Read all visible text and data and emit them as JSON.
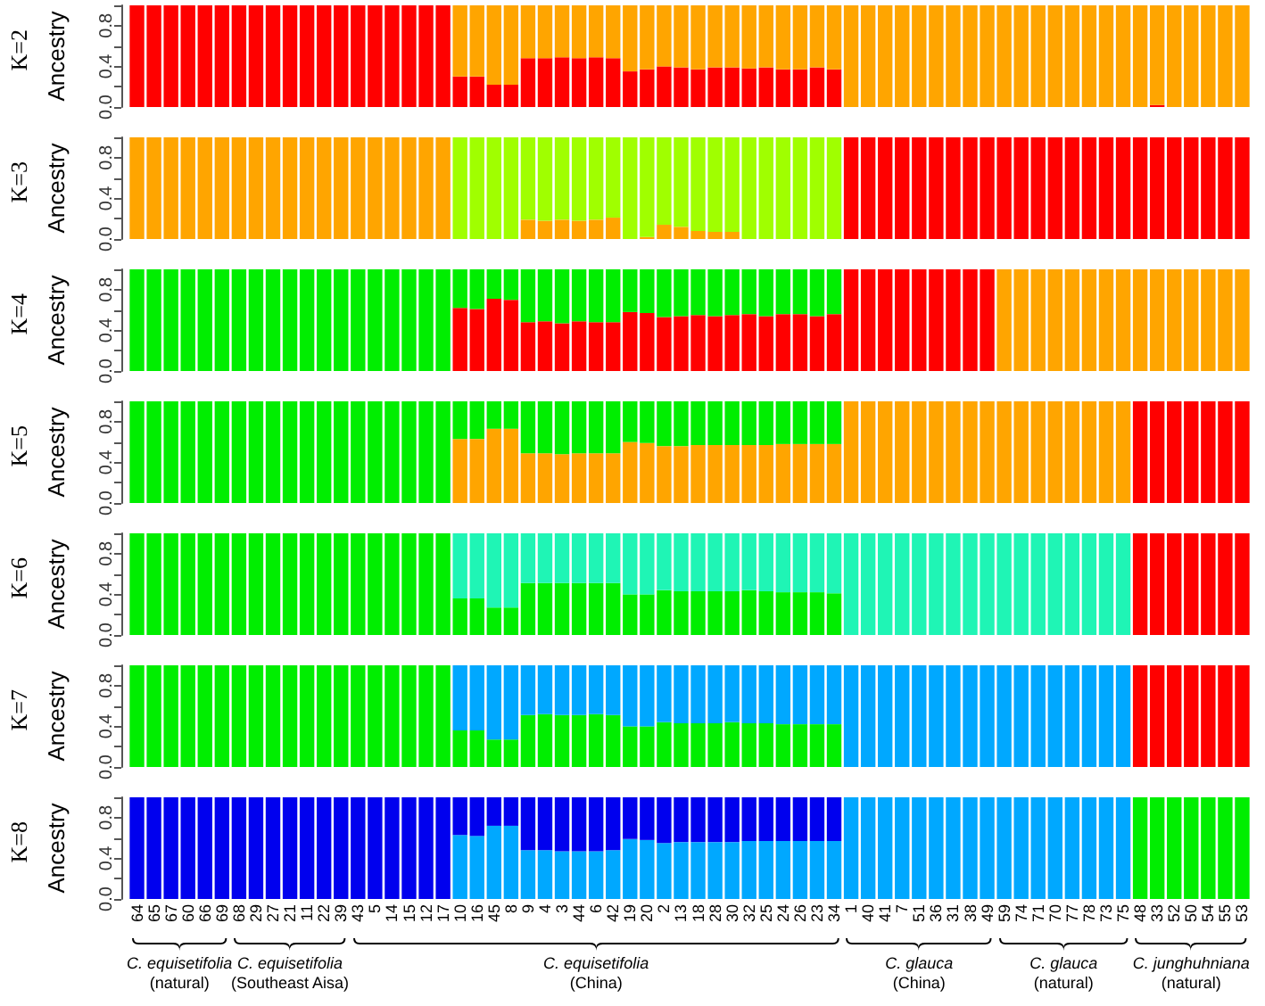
{
  "chart_data": [
    {
      "type": "bar",
      "stacked": true,
      "title": "K=2",
      "ylabel": "Ancestry",
      "tick_labels": "y",
      "ylim": [
        0,
        1
      ],
      "yticks": [
        {
          "value": 0,
          "label": "0.0"
        },
        {
          "value": 0.2,
          "label": null
        },
        {
          "value": 0.4,
          "label": "0.4"
        },
        {
          "value": 0.6,
          "label": null
        },
        {
          "value": 0.8,
          "label": "0.8"
        },
        {
          "value": 1,
          "label": null
        }
      ],
      "categories": [
        "64",
        "65",
        "67",
        "60",
        "66",
        "69",
        "68",
        "29",
        "27",
        "21",
        "11",
        "22",
        "39",
        "43",
        "5",
        "14",
        "15",
        "12",
        "17",
        "10",
        "16",
        "45",
        "8",
        "9",
        "4",
        "3",
        "44",
        "6",
        "42",
        "19",
        "20",
        "2",
        "13",
        "18",
        "28",
        "30",
        "32",
        "25",
        "24",
        "26",
        "23",
        "34",
        "1",
        "40",
        "41",
        "7",
        "51",
        "36",
        "31",
        "38",
        "49",
        "59",
        "74",
        "71",
        "70",
        "77",
        "78",
        "73",
        "75",
        "48",
        "33",
        "52",
        "50",
        "54",
        "55",
        "53"
      ],
      "series": [
        {
          "color": "#ff0000",
          "values": [
            1,
            1,
            1,
            1,
            1,
            1,
            1,
            1,
            1,
            1,
            1,
            1,
            1,
            1,
            1,
            1,
            1,
            1,
            1,
            0.3,
            0.3,
            0.22,
            0.22,
            0.48,
            0.48,
            0.49,
            0.48,
            0.49,
            0.48,
            0.35,
            0.37,
            0.4,
            0.39,
            0.37,
            0.39,
            0.39,
            0.38,
            0.39,
            0.37,
            0.37,
            0.39,
            0.37,
            0,
            0,
            0,
            0,
            0,
            0,
            0,
            0,
            0,
            0,
            0,
            0,
            0,
            0,
            0,
            0,
            0,
            0,
            0.02,
            0,
            0,
            0,
            0,
            0
          ]
        },
        {
          "color": "#ffa500",
          "values": [
            0,
            0,
            0,
            0,
            0,
            0,
            0,
            0,
            0,
            0,
            0,
            0,
            0,
            0,
            0,
            0,
            0,
            0,
            0,
            0.7,
            0.7,
            0.78,
            0.78,
            0.52,
            0.52,
            0.51,
            0.52,
            0.51,
            0.52,
            0.65,
            0.63,
            0.6,
            0.61,
            0.63,
            0.61,
            0.61,
            0.62,
            0.61,
            0.63,
            0.63,
            0.61,
            0.63,
            1,
            1,
            1,
            1,
            1,
            1,
            1,
            1,
            1,
            1,
            1,
            1,
            1,
            1,
            1,
            1,
            1,
            1,
            0.98,
            1,
            1,
            1,
            1,
            1
          ]
        }
      ]
    },
    {
      "type": "bar",
      "stacked": true,
      "title": "K=3",
      "ylabel": "Ancestry",
      "tick_labels": "y",
      "ylim": [
        0,
        1
      ],
      "yticks": [
        {
          "value": 0,
          "label": "0.0"
        },
        {
          "value": 0.2,
          "label": null
        },
        {
          "value": 0.4,
          "label": "0.4"
        },
        {
          "value": 0.6,
          "label": null
        },
        {
          "value": 0.8,
          "label": "0.8"
        },
        {
          "value": 1,
          "label": null
        }
      ],
      "categories": [
        "64",
        "65",
        "67",
        "60",
        "66",
        "69",
        "68",
        "29",
        "27",
        "21",
        "11",
        "22",
        "39",
        "43",
        "5",
        "14",
        "15",
        "12",
        "17",
        "10",
        "16",
        "45",
        "8",
        "9",
        "4",
        "3",
        "44",
        "6",
        "42",
        "19",
        "20",
        "2",
        "13",
        "18",
        "28",
        "30",
        "32",
        "25",
        "24",
        "26",
        "23",
        "34",
        "1",
        "40",
        "41",
        "7",
        "51",
        "36",
        "31",
        "38",
        "49",
        "59",
        "74",
        "71",
        "70",
        "77",
        "78",
        "73",
        "75",
        "48",
        "33",
        "52",
        "50",
        "54",
        "55",
        "53"
      ],
      "series": [
        {
          "color": "#ffa500",
          "values": [
            1,
            1,
            1,
            1,
            1,
            1,
            1,
            1,
            1,
            1,
            1,
            1,
            1,
            1,
            1,
            1,
            1,
            1,
            1,
            0,
            0,
            0,
            0,
            0.19,
            0.18,
            0.19,
            0.18,
            0.19,
            0.21,
            0,
            0.02,
            0.14,
            0.12,
            0.08,
            0.07,
            0.07,
            0,
            0,
            0,
            0,
            0,
            0,
            0,
            0,
            0,
            0,
            0,
            0,
            0,
            0,
            0,
            0,
            0,
            0,
            0,
            0,
            0,
            0,
            0,
            0,
            0,
            0,
            0,
            0,
            0,
            0
          ]
        },
        {
          "color": "#a0ff00",
          "values": [
            0,
            0,
            0,
            0,
            0,
            0,
            0,
            0,
            0,
            0,
            0,
            0,
            0,
            0,
            0,
            0,
            0,
            0,
            0,
            1,
            1,
            1,
            1,
            0.81,
            0.82,
            0.81,
            0.82,
            0.81,
            0.79,
            1,
            0.98,
            0.86,
            0.88,
            0.92,
            0.93,
            0.93,
            1,
            1,
            1,
            1,
            1,
            1,
            0,
            0,
            0,
            0,
            0,
            0,
            0,
            0,
            0,
            0,
            0,
            0,
            0,
            0,
            0,
            0,
            0,
            0,
            0,
            0,
            0,
            0,
            0,
            0
          ]
        },
        {
          "color": "#ff0000",
          "values": [
            0,
            0,
            0,
            0,
            0,
            0,
            0,
            0,
            0,
            0,
            0,
            0,
            0,
            0,
            0,
            0,
            0,
            0,
            0,
            0,
            0,
            0,
            0,
            0,
            0,
            0,
            0,
            0,
            0,
            0,
            0,
            0,
            0,
            0,
            0,
            0,
            0,
            0,
            0,
            0,
            0,
            0,
            1,
            1,
            1,
            1,
            1,
            1,
            1,
            1,
            1,
            1,
            1,
            1,
            1,
            1,
            1,
            1,
            1,
            1,
            1,
            1,
            1,
            1,
            1,
            1
          ]
        }
      ]
    },
    {
      "type": "bar",
      "stacked": true,
      "title": "K=4",
      "ylabel": "Ancestry",
      "tick_labels": "y",
      "ylim": [
        0,
        1
      ],
      "yticks": [
        {
          "value": 0,
          "label": "0.0"
        },
        {
          "value": 0.2,
          "label": null
        },
        {
          "value": 0.4,
          "label": "0.4"
        },
        {
          "value": 0.6,
          "label": null
        },
        {
          "value": 0.8,
          "label": "0.8"
        },
        {
          "value": 1,
          "label": null
        }
      ],
      "categories": [
        "64",
        "65",
        "67",
        "60",
        "66",
        "69",
        "68",
        "29",
        "27",
        "21",
        "11",
        "22",
        "39",
        "43",
        "5",
        "14",
        "15",
        "12",
        "17",
        "10",
        "16",
        "45",
        "8",
        "9",
        "4",
        "3",
        "44",
        "6",
        "42",
        "19",
        "20",
        "2",
        "13",
        "18",
        "28",
        "30",
        "32",
        "25",
        "24",
        "26",
        "23",
        "34",
        "1",
        "40",
        "41",
        "7",
        "51",
        "36",
        "31",
        "38",
        "49",
        "59",
        "74",
        "71",
        "70",
        "77",
        "78",
        "73",
        "75",
        "48",
        "33",
        "52",
        "50",
        "54",
        "55",
        "53"
      ],
      "series": [
        {
          "color": "#ff0000",
          "values": [
            0,
            0,
            0,
            0,
            0,
            0,
            0,
            0,
            0,
            0,
            0,
            0,
            0,
            0,
            0,
            0,
            0,
            0,
            0,
            0.62,
            0.61,
            0.71,
            0.7,
            0.48,
            0.49,
            0.47,
            0.49,
            0.48,
            0.48,
            0.58,
            0.57,
            0.53,
            0.54,
            0.55,
            0.54,
            0.55,
            0.56,
            0.54,
            0.56,
            0.56,
            0.54,
            0.56,
            1,
            1,
            1,
            1,
            1,
            1,
            1,
            1,
            1,
            0,
            0,
            0,
            0,
            0,
            0,
            0,
            0,
            0,
            0,
            0,
            0,
            0,
            0,
            0
          ]
        },
        {
          "color": "#00ee00",
          "values": [
            1,
            1,
            1,
            1,
            1,
            1,
            1,
            1,
            1,
            1,
            1,
            1,
            1,
            1,
            1,
            1,
            1,
            1,
            1,
            0.38,
            0.39,
            0.29,
            0.3,
            0.52,
            0.51,
            0.53,
            0.51,
            0.52,
            0.52,
            0.42,
            0.43,
            0.47,
            0.46,
            0.45,
            0.46,
            0.45,
            0.44,
            0.46,
            0.44,
            0.44,
            0.46,
            0.44,
            0,
            0,
            0,
            0,
            0,
            0,
            0,
            0,
            0,
            0,
            0,
            0,
            0,
            0,
            0,
            0,
            0,
            0,
            0,
            0,
            0,
            0,
            0,
            0
          ]
        },
        {
          "color": "#ffa500",
          "values": [
            0,
            0,
            0,
            0,
            0,
            0,
            0,
            0,
            0,
            0,
            0,
            0,
            0,
            0,
            0,
            0,
            0,
            0,
            0,
            0,
            0,
            0,
            0,
            0,
            0,
            0,
            0,
            0,
            0,
            0,
            0,
            0,
            0,
            0,
            0,
            0,
            0,
            0,
            0,
            0,
            0,
            0,
            0,
            0,
            0,
            0,
            0,
            0,
            0,
            0,
            0,
            1,
            1,
            1,
            1,
            1,
            1,
            1,
            1,
            1,
            1,
            1,
            1,
            1,
            1,
            1
          ]
        }
      ]
    },
    {
      "type": "bar",
      "stacked": true,
      "title": "K=5",
      "ylabel": "Ancestry",
      "tick_labels": "y",
      "ylim": [
        0,
        1
      ],
      "yticks": [
        {
          "value": 0,
          "label": "0.0"
        },
        {
          "value": 0.2,
          "label": null
        },
        {
          "value": 0.4,
          "label": "0.4"
        },
        {
          "value": 0.6,
          "label": null
        },
        {
          "value": 0.8,
          "label": "0.8"
        },
        {
          "value": 1,
          "label": null
        }
      ],
      "categories": [
        "64",
        "65",
        "67",
        "60",
        "66",
        "69",
        "68",
        "29",
        "27",
        "21",
        "11",
        "22",
        "39",
        "43",
        "5",
        "14",
        "15",
        "12",
        "17",
        "10",
        "16",
        "45",
        "8",
        "9",
        "4",
        "3",
        "44",
        "6",
        "42",
        "19",
        "20",
        "2",
        "13",
        "18",
        "28",
        "30",
        "32",
        "25",
        "24",
        "26",
        "23",
        "34",
        "1",
        "40",
        "41",
        "7",
        "51",
        "36",
        "31",
        "38",
        "49",
        "59",
        "74",
        "71",
        "70",
        "77",
        "78",
        "73",
        "75",
        "48",
        "33",
        "52",
        "50",
        "54",
        "55",
        "53"
      ],
      "series": [
        {
          "color": "#ffa500",
          "values": [
            0,
            0,
            0,
            0,
            0,
            0,
            0,
            0,
            0,
            0,
            0,
            0,
            0,
            0,
            0,
            0,
            0,
            0,
            0,
            0.63,
            0.63,
            0.73,
            0.73,
            0.49,
            0.49,
            0.48,
            0.49,
            0.49,
            0.49,
            0.6,
            0.59,
            0.56,
            0.56,
            0.57,
            0.57,
            0.57,
            0.57,
            0.57,
            0.58,
            0.58,
            0.58,
            0.58,
            1,
            1,
            1,
            1,
            1,
            1,
            1,
            1,
            1,
            1,
            1,
            1,
            1,
            1,
            1,
            1,
            1,
            0,
            0,
            0,
            0,
            0,
            0,
            0
          ]
        },
        {
          "color": "#00ee00",
          "values": [
            1,
            1,
            1,
            1,
            1,
            1,
            1,
            1,
            1,
            1,
            1,
            1,
            1,
            1,
            1,
            1,
            1,
            1,
            1,
            0.37,
            0.37,
            0.27,
            0.27,
            0.51,
            0.51,
            0.52,
            0.51,
            0.51,
            0.51,
            0.4,
            0.41,
            0.44,
            0.44,
            0.43,
            0.43,
            0.43,
            0.43,
            0.43,
            0.42,
            0.42,
            0.42,
            0.42,
            0,
            0,
            0,
            0,
            0,
            0,
            0,
            0,
            0,
            0,
            0,
            0,
            0,
            0,
            0,
            0,
            0,
            0,
            0,
            0,
            0,
            0,
            0,
            0
          ]
        },
        {
          "color": "#ff0000",
          "values": [
            0,
            0,
            0,
            0,
            0,
            0,
            0,
            0,
            0,
            0,
            0,
            0,
            0,
            0,
            0,
            0,
            0,
            0,
            0,
            0,
            0,
            0,
            0,
            0,
            0,
            0,
            0,
            0,
            0,
            0,
            0,
            0,
            0,
            0,
            0,
            0,
            0,
            0,
            0,
            0,
            0,
            0,
            0,
            0,
            0,
            0,
            0,
            0,
            0,
            0,
            0,
            0,
            0,
            0,
            0,
            0,
            0,
            0,
            0,
            1,
            1,
            1,
            1,
            1,
            1,
            1
          ]
        }
      ]
    },
    {
      "type": "bar",
      "stacked": true,
      "title": "K=6",
      "ylabel": "Ancestry",
      "tick_labels": "y",
      "ylim": [
        0,
        1
      ],
      "yticks": [
        {
          "value": 0,
          "label": "0.0"
        },
        {
          "value": 0.2,
          "label": null
        },
        {
          "value": 0.4,
          "label": "0.4"
        },
        {
          "value": 0.6,
          "label": null
        },
        {
          "value": 0.8,
          "label": "0.8"
        },
        {
          "value": 1,
          "label": null
        }
      ],
      "categories": [
        "64",
        "65",
        "67",
        "60",
        "66",
        "69",
        "68",
        "29",
        "27",
        "21",
        "11",
        "22",
        "39",
        "43",
        "5",
        "14",
        "15",
        "12",
        "17",
        "10",
        "16",
        "45",
        "8",
        "9",
        "4",
        "3",
        "44",
        "6",
        "42",
        "19",
        "20",
        "2",
        "13",
        "18",
        "28",
        "30",
        "32",
        "25",
        "24",
        "26",
        "23",
        "34",
        "1",
        "40",
        "41",
        "7",
        "51",
        "36",
        "31",
        "38",
        "49",
        "59",
        "74",
        "71",
        "70",
        "77",
        "78",
        "73",
        "75",
        "48",
        "33",
        "52",
        "50",
        "54",
        "55",
        "53"
      ],
      "series": [
        {
          "color": "#00ee00",
          "values": [
            1,
            1,
            1,
            1,
            1,
            1,
            1,
            1,
            1,
            1,
            1,
            1,
            1,
            1,
            1,
            1,
            1,
            1,
            1,
            0.36,
            0.36,
            0.27,
            0.27,
            0.51,
            0.51,
            0.51,
            0.51,
            0.51,
            0.51,
            0.4,
            0.4,
            0.44,
            0.43,
            0.43,
            0.43,
            0.43,
            0.44,
            0.43,
            0.42,
            0.42,
            0.42,
            0.41,
            0,
            0,
            0,
            0,
            0,
            0,
            0,
            0,
            0,
            0,
            0,
            0,
            0,
            0,
            0,
            0,
            0,
            0,
            0,
            0,
            0,
            0,
            0,
            0
          ]
        },
        {
          "color": "#1ff5b5",
          "values": [
            0,
            0,
            0,
            0,
            0,
            0,
            0,
            0,
            0,
            0,
            0,
            0,
            0,
            0,
            0,
            0,
            0,
            0,
            0,
            0.64,
            0.64,
            0.73,
            0.73,
            0.49,
            0.49,
            0.49,
            0.49,
            0.49,
            0.49,
            0.6,
            0.6,
            0.56,
            0.57,
            0.57,
            0.57,
            0.57,
            0.56,
            0.57,
            0.58,
            0.58,
            0.58,
            0.59,
            1,
            1,
            1,
            1,
            1,
            1,
            1,
            1,
            1,
            1,
            1,
            1,
            1,
            1,
            1,
            1,
            1,
            0,
            0,
            0,
            0,
            0,
            0,
            0
          ]
        },
        {
          "color": "#ff0000",
          "values": [
            0,
            0,
            0,
            0,
            0,
            0,
            0,
            0,
            0,
            0,
            0,
            0,
            0,
            0,
            0,
            0,
            0,
            0,
            0,
            0,
            0,
            0,
            0,
            0,
            0,
            0,
            0,
            0,
            0,
            0,
            0,
            0,
            0,
            0,
            0,
            0,
            0,
            0,
            0,
            0,
            0,
            0,
            0,
            0,
            0,
            0,
            0,
            0,
            0,
            0,
            0,
            0,
            0,
            0,
            0,
            0,
            0,
            0,
            0,
            1,
            1,
            1,
            1,
            1,
            1,
            1
          ]
        }
      ]
    },
    {
      "type": "bar",
      "stacked": true,
      "title": "K=7",
      "ylabel": "Ancestry",
      "tick_labels": "y",
      "ylim": [
        0,
        1
      ],
      "yticks": [
        {
          "value": 0,
          "label": "0.0"
        },
        {
          "value": 0.2,
          "label": null
        },
        {
          "value": 0.4,
          "label": "0.4"
        },
        {
          "value": 0.6,
          "label": null
        },
        {
          "value": 0.8,
          "label": "0.8"
        },
        {
          "value": 1,
          "label": null
        }
      ],
      "categories": [
        "64",
        "65",
        "67",
        "60",
        "66",
        "69",
        "68",
        "29",
        "27",
        "21",
        "11",
        "22",
        "39",
        "43",
        "5",
        "14",
        "15",
        "12",
        "17",
        "10",
        "16",
        "45",
        "8",
        "9",
        "4",
        "3",
        "44",
        "6",
        "42",
        "19",
        "20",
        "2",
        "13",
        "18",
        "28",
        "30",
        "32",
        "25",
        "24",
        "26",
        "23",
        "34",
        "1",
        "40",
        "41",
        "7",
        "51",
        "36",
        "31",
        "38",
        "49",
        "59",
        "74",
        "71",
        "70",
        "77",
        "78",
        "73",
        "75",
        "48",
        "33",
        "52",
        "50",
        "54",
        "55",
        "53"
      ],
      "series": [
        {
          "color": "#00ee00",
          "values": [
            1,
            1,
            1,
            1,
            1,
            1,
            1,
            1,
            1,
            1,
            1,
            1,
            1,
            1,
            1,
            1,
            1,
            1,
            1,
            0.36,
            0.36,
            0.27,
            0.27,
            0.51,
            0.52,
            0.51,
            0.51,
            0.52,
            0.51,
            0.4,
            0.4,
            0.44,
            0.43,
            0.43,
            0.43,
            0.44,
            0.43,
            0.43,
            0.42,
            0.42,
            0.42,
            0.42,
            0,
            0,
            0,
            0,
            0,
            0,
            0,
            0,
            0,
            0,
            0,
            0,
            0,
            0,
            0,
            0,
            0,
            0,
            0,
            0,
            0,
            0,
            0,
            0
          ]
        },
        {
          "color": "#00a8ff",
          "values": [
            0,
            0,
            0,
            0,
            0,
            0,
            0,
            0,
            0,
            0,
            0,
            0,
            0,
            0,
            0,
            0,
            0,
            0,
            0,
            0.64,
            0.64,
            0.73,
            0.73,
            0.49,
            0.48,
            0.49,
            0.49,
            0.48,
            0.49,
            0.6,
            0.6,
            0.56,
            0.57,
            0.57,
            0.57,
            0.56,
            0.57,
            0.57,
            0.58,
            0.58,
            0.58,
            0.58,
            1,
            1,
            1,
            1,
            1,
            1,
            1,
            1,
            1,
            1,
            1,
            1,
            1,
            1,
            1,
            1,
            1,
            0,
            0,
            0,
            0,
            0,
            0,
            0
          ]
        },
        {
          "color": "#ff0000",
          "values": [
            0,
            0,
            0,
            0,
            0,
            0,
            0,
            0,
            0,
            0,
            0,
            0,
            0,
            0,
            0,
            0,
            0,
            0,
            0,
            0,
            0,
            0,
            0,
            0,
            0,
            0,
            0,
            0,
            0,
            0,
            0,
            0,
            0,
            0,
            0,
            0,
            0,
            0,
            0,
            0,
            0,
            0,
            0,
            0,
            0,
            0,
            0,
            0,
            0,
            0,
            0,
            0,
            0,
            0,
            0,
            0,
            0,
            0,
            0,
            1,
            1,
            1,
            1,
            1,
            1,
            1
          ]
        }
      ]
    },
    {
      "type": "bar",
      "stacked": true,
      "title": "K=8",
      "ylabel": "Ancestry",
      "ylim": [
        0,
        1
      ],
      "yticks": [
        {
          "value": 0,
          "label": "0.0"
        },
        {
          "value": 0.2,
          "label": null
        },
        {
          "value": 0.4,
          "label": "0.4"
        },
        {
          "value": 0.6,
          "label": null
        },
        {
          "value": 0.8,
          "label": "0.8"
        },
        {
          "value": 1,
          "label": null
        }
      ],
      "categories": [
        "64",
        "65",
        "67",
        "60",
        "66",
        "69",
        "68",
        "29",
        "27",
        "21",
        "11",
        "22",
        "39",
        "43",
        "5",
        "14",
        "15",
        "12",
        "17",
        "10",
        "16",
        "45",
        "8",
        "9",
        "4",
        "3",
        "44",
        "6",
        "42",
        "19",
        "20",
        "2",
        "13",
        "18",
        "28",
        "30",
        "32",
        "25",
        "24",
        "26",
        "23",
        "34",
        "1",
        "40",
        "41",
        "7",
        "51",
        "36",
        "31",
        "38",
        "49",
        "59",
        "74",
        "71",
        "70",
        "77",
        "78",
        "73",
        "75",
        "48",
        "33",
        "52",
        "50",
        "54",
        "55",
        "53"
      ],
      "series": [
        {
          "color": "#00a8ff",
          "values": [
            0,
            0,
            0,
            0,
            0,
            0,
            0,
            0,
            0,
            0,
            0,
            0,
            0,
            0,
            0,
            0,
            0,
            0,
            0,
            0.63,
            0.62,
            0.72,
            0.72,
            0.48,
            0.48,
            0.47,
            0.47,
            0.47,
            0.48,
            0.59,
            0.58,
            0.55,
            0.56,
            0.56,
            0.56,
            0.56,
            0.57,
            0.57,
            0.57,
            0.57,
            0.57,
            0.57,
            1,
            1,
            1,
            1,
            1,
            1,
            1,
            1,
            1,
            1,
            1,
            1,
            1,
            1,
            1,
            1,
            1,
            0,
            0,
            0,
            0,
            0,
            0,
            0
          ]
        },
        {
          "color": "#0000ee",
          "values": [
            1,
            1,
            1,
            1,
            1,
            1,
            1,
            1,
            1,
            1,
            1,
            1,
            1,
            1,
            1,
            1,
            1,
            1,
            1,
            0.37,
            0.38,
            0.28,
            0.28,
            0.52,
            0.52,
            0.53,
            0.53,
            0.53,
            0.52,
            0.41,
            0.42,
            0.45,
            0.44,
            0.44,
            0.44,
            0.44,
            0.43,
            0.43,
            0.43,
            0.43,
            0.43,
            0.43,
            0,
            0,
            0,
            0,
            0,
            0,
            0,
            0,
            0,
            0,
            0,
            0,
            0,
            0,
            0,
            0,
            0,
            0,
            0,
            0,
            0,
            0,
            0,
            0
          ]
        },
        {
          "color": "#00ee00",
          "values": [
            0,
            0,
            0,
            0,
            0,
            0,
            0,
            0,
            0,
            0,
            0,
            0,
            0,
            0,
            0,
            0,
            0,
            0,
            0,
            0,
            0,
            0,
            0,
            0,
            0,
            0,
            0,
            0,
            0,
            0,
            0,
            0,
            0,
            0,
            0,
            0,
            0,
            0,
            0,
            0,
            0,
            0,
            0,
            0,
            0,
            0,
            0,
            0,
            0,
            0,
            0,
            0,
            0,
            0,
            0,
            0,
            0,
            0,
            0,
            1,
            1,
            1,
            1,
            1,
            1,
            1
          ]
        }
      ],
      "annotations": [
        "C. equisetifolia\n(natural)",
        "C. equisetifolia\n(Southeast Aisa)",
        "C. equisetifolia\n(China)",
        "C. glauca\n(China)",
        "C. glauca\n(natural)",
        "C. junghuhniana\n(natural)"
      ]
    }
  ]
}
